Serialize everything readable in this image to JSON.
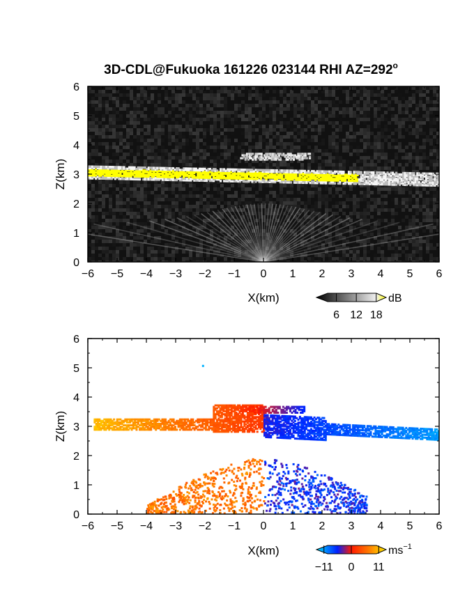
{
  "figure": {
    "title": "3D-CDL@Fukuoka 161226 023144 RHI AZ=292",
    "title_superscript": "o"
  },
  "chart_data": [
    {
      "type": "heatmap",
      "panel": "top",
      "xlabel": "X(km)",
      "ylabel": "Z(km)",
      "xlim": [
        -6,
        6
      ],
      "ylim": [
        0,
        6
      ],
      "xticks": [
        -6,
        -5,
        -4,
        -3,
        -2,
        -1,
        0,
        1,
        2,
        3,
        4,
        5,
        6
      ],
      "yticks": [
        0,
        1,
        2,
        3,
        4,
        5,
        6
      ],
      "colorbar": {
        "unit": "dB",
        "tick_values": [
          6,
          12,
          18
        ],
        "tick_labels": [
          "6",
          "12",
          "18"
        ],
        "range": [
          0,
          21
        ],
        "colors": [
          "#000000",
          "#ffffff",
          "#ffff00"
        ]
      },
      "features": [
        {
          "name": "layer",
          "x_range": [
            -6,
            6
          ],
          "z_start": 3.1,
          "z_end": 2.85,
          "thickness_km": 0.2,
          "peak_dB": 18
        },
        {
          "name": "upper-echo",
          "x_range": [
            -0.8,
            1.6
          ],
          "z": 3.65,
          "peak_dB": 14
        },
        {
          "name": "fan",
          "origin": [
            0,
            0
          ],
          "z_top": 2.0,
          "peak_dB": 12
        }
      ]
    },
    {
      "type": "heatmap",
      "panel": "bottom",
      "xlabel": "X(km)",
      "ylabel": "Z(km)",
      "xlim": [
        -6,
        6
      ],
      "ylim": [
        0,
        6
      ],
      "xticks": [
        -6,
        -5,
        -4,
        -3,
        -2,
        -1,
        0,
        1,
        2,
        3,
        4,
        5,
        6
      ],
      "yticks": [
        0,
        1,
        2,
        3,
        4,
        5,
        6
      ],
      "colorbar": {
        "unit": "ms",
        "unit_exponent": "−1",
        "tick_values": [
          -11,
          0,
          11
        ],
        "tick_labels": [
          "−11",
          "0",
          "11"
        ],
        "range": [
          -14,
          14
        ],
        "colors": [
          "#00ffff",
          "#0000ff",
          "#ff0000",
          "#ffff00"
        ]
      },
      "features": [
        {
          "name": "layer-approaching",
          "x_range": [
            -5.8,
            0
          ],
          "z": 3.1,
          "velocity_ms": [
            11,
            2
          ]
        },
        {
          "name": "layer-receding",
          "x_range": [
            0,
            6
          ],
          "z_start": 3.05,
          "z_end": 2.75,
          "velocity_ms": [
            -5,
            -11
          ]
        },
        {
          "name": "cap",
          "x_range": [
            -0.8,
            1.4
          ],
          "z": 3.6,
          "velocity_ms": [
            2,
            -6
          ]
        },
        {
          "name": "lower-fan",
          "x_range": [
            -4,
            3.5
          ],
          "z_top": 1.9,
          "velocity_ms": [
            8,
            -6
          ]
        },
        {
          "name": "isolated-point",
          "x": -2.1,
          "z": 5.1,
          "velocity_ms": -12
        }
      ]
    }
  ]
}
